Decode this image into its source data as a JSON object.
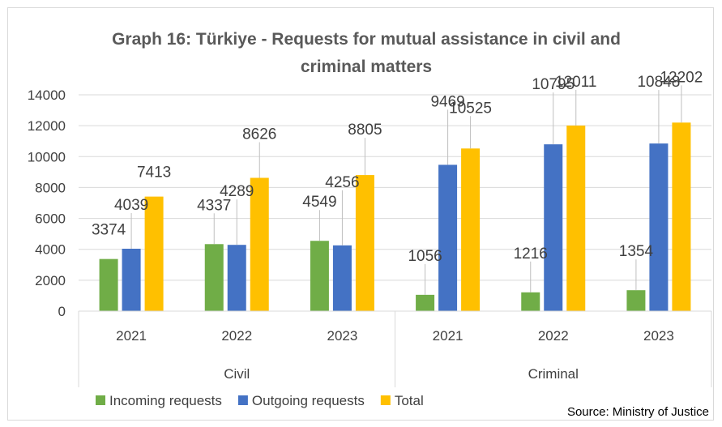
{
  "chart_data": {
    "type": "bar",
    "title_line1": "Graph 16: Türkiye - Requests for mutual assistance in civil and",
    "title_line2": "criminal matters",
    "groups": [
      {
        "label": "Civil",
        "categories": [
          "2021",
          "2022",
          "2023"
        ]
      },
      {
        "label": "Criminal",
        "categories": [
          "2021",
          "2022",
          "2023"
        ]
      }
    ],
    "series": [
      {
        "name": "Incoming requests",
        "color": "#70ad47",
        "values": [
          3374,
          4337,
          4549,
          1056,
          1216,
          1354
        ]
      },
      {
        "name": "Outgoing requests",
        "color": "#4472c4",
        "values": [
          4039,
          4289,
          4256,
          9469,
          10795,
          10848
        ]
      },
      {
        "name": "Total",
        "color": "#ffc000",
        "values": [
          7413,
          8626,
          8805,
          10525,
          12011,
          12202
        ]
      }
    ],
    "ylim": [
      0,
      14000
    ],
    "yticks": [
      0,
      2000,
      4000,
      6000,
      8000,
      10000,
      12000,
      14000
    ],
    "grid": true,
    "legend_position": "bottom-left",
    "source": "Source: Ministry of Justice"
  }
}
